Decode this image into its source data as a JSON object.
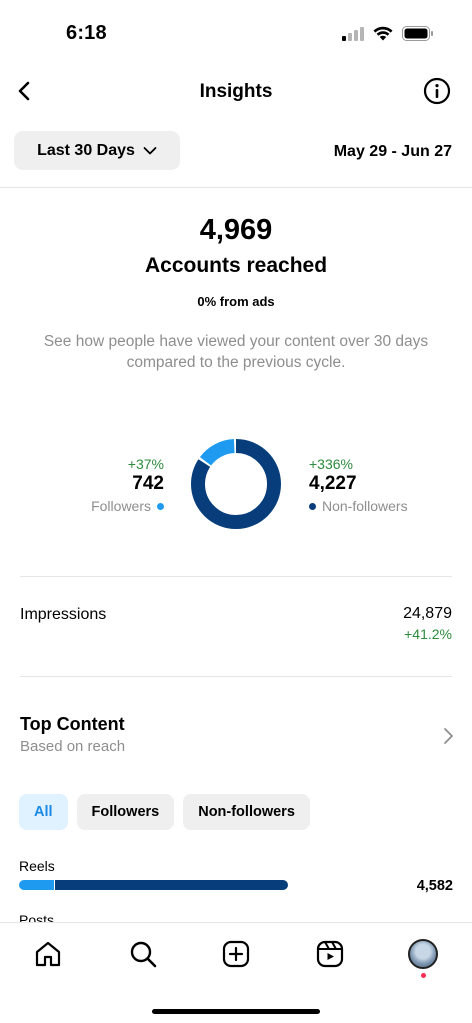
{
  "status": {
    "time": "6:18"
  },
  "nav": {
    "title": "Insights"
  },
  "filter": {
    "range_label": "Last 30 Days",
    "date_range": "May 29 - Jun 27"
  },
  "summary": {
    "accounts_reached": "4,969",
    "label": "Accounts reached",
    "ads": "0% from ads",
    "description": "See how people have viewed your content over 30 days compared to the previous cycle."
  },
  "audience": {
    "followers": {
      "change": "+37%",
      "value": "742",
      "label": "Followers",
      "color": "#1e9bf0"
    },
    "non_followers": {
      "change": "+336%",
      "value": "4,227",
      "label": "Non-followers",
      "color": "#073d7a"
    }
  },
  "chart_data": {
    "type": "pie",
    "categories": [
      "Followers",
      "Non-followers"
    ],
    "values": [
      742,
      4227
    ],
    "colors": [
      "#1e9bf0",
      "#073d7a"
    ]
  },
  "impressions": {
    "label": "Impressions",
    "value": "24,879",
    "change": "+41.2%"
  },
  "top_content": {
    "title": "Top Content",
    "subtitle": "Based on reach",
    "chips": [
      {
        "label": "All",
        "active": true
      },
      {
        "label": "Followers",
        "active": false
      },
      {
        "label": "Non-followers",
        "active": false
      }
    ],
    "rows": [
      {
        "label": "Reels",
        "value": "4,582",
        "followers_share": 0.13
      },
      {
        "label": "Posts"
      }
    ]
  },
  "tabbar": {
    "items": [
      {
        "name": "home-icon"
      },
      {
        "name": "search-icon"
      },
      {
        "name": "create-icon"
      },
      {
        "name": "reels-icon"
      },
      {
        "name": "profile-avatar"
      }
    ]
  }
}
